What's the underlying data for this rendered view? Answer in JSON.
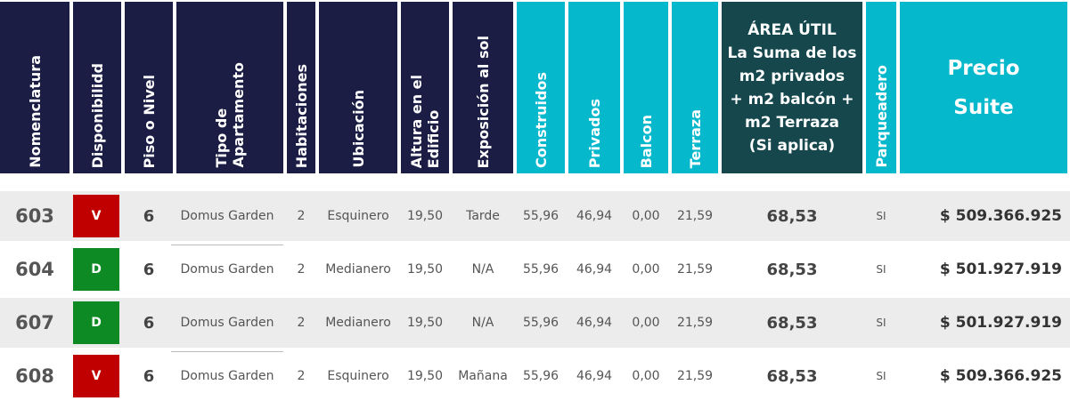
{
  "headers": {
    "nomenclatura": "Nomenclatura",
    "disponibilidad": "Disponibilidd",
    "piso": "Piso o Nivel",
    "tipo": "Tipo de\nApartamento",
    "habitaciones": "Habitaciones",
    "ubicacion": "Ubicación",
    "altura": "Altura en el\nEdificio",
    "exposicion": "Exposición al sol",
    "construidos": "Construidos",
    "privados": "Privados",
    "balcon": "Balcon",
    "terraza": "Terraza",
    "area_util": "ÁREA ÚTIL\nLa Suma de los\nm2 privados\n+ m2 balcón +\nm2 Terraza\n(Si aplica)",
    "parqueadero": "Parqueadero",
    "precio": "Precio\nSuite"
  },
  "colors": {
    "header_navy": "#1b1d44",
    "header_teal": "#05b8cc",
    "header_dark_teal": "#15474d",
    "status_v": "#c00000",
    "status_d": "#0e8a24",
    "row_shade": "#ececec"
  },
  "rows": [
    {
      "nomenclatura": "603",
      "disponibilidad": "V",
      "piso": "6",
      "tipo": "Domus Garden",
      "habitaciones": "2",
      "ubicacion": "Esquinero",
      "altura": "19,50",
      "exposicion": "Tarde",
      "construidos": "55,96",
      "privados": "46,94",
      "balcon": "0,00",
      "terraza": "21,59",
      "area_util": "68,53",
      "parqueadero": "SI",
      "precio": "$ 509.366.925"
    },
    {
      "nomenclatura": "604",
      "disponibilidad": "D",
      "piso": "6",
      "tipo": "Domus Garden",
      "habitaciones": "2",
      "ubicacion": "Medianero",
      "altura": "19,50",
      "exposicion": "N/A",
      "construidos": "55,96",
      "privados": "46,94",
      "balcon": "0,00",
      "terraza": "21,59",
      "area_util": "68,53",
      "parqueadero": "SI",
      "precio": "$ 501.927.919"
    },
    {
      "nomenclatura": "607",
      "disponibilidad": "D",
      "piso": "6",
      "tipo": "Domus Garden",
      "habitaciones": "2",
      "ubicacion": "Medianero",
      "altura": "19,50",
      "exposicion": "N/A",
      "construidos": "55,96",
      "privados": "46,94",
      "balcon": "0,00",
      "terraza": "21,59",
      "area_util": "68,53",
      "parqueadero": "SI",
      "precio": "$ 501.927.919"
    },
    {
      "nomenclatura": "608",
      "disponibilidad": "V",
      "piso": "6",
      "tipo": "Domus Garden",
      "habitaciones": "2",
      "ubicacion": "Esquinero",
      "altura": "19,50",
      "exposicion": "Mañana",
      "construidos": "55,96",
      "privados": "46,94",
      "balcon": "0,00",
      "terraza": "21,59",
      "area_util": "68,53",
      "parqueadero": "SI",
      "precio": "$ 509.366.925"
    }
  ]
}
